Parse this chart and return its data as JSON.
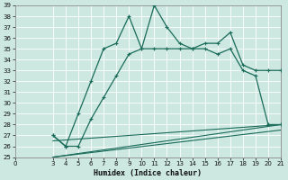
{
  "xlabel": "Humidex (Indice chaleur)",
  "xlim": [
    0,
    21
  ],
  "ylim": [
    25,
    39
  ],
  "yticks": [
    25,
    26,
    27,
    28,
    29,
    30,
    31,
    32,
    33,
    34,
    35,
    36,
    37,
    38,
    39
  ],
  "xticks": [
    0,
    3,
    4,
    5,
    6,
    7,
    8,
    9,
    10,
    11,
    12,
    13,
    14,
    15,
    16,
    17,
    18,
    19,
    20,
    21
  ],
  "bg_color": "#cce8e0",
  "line_color": "#1a6b5a",
  "line1_x": [
    3,
    4,
    5,
    6,
    7,
    8,
    9,
    10,
    11,
    12,
    13,
    14,
    15,
    16,
    17,
    18,
    19,
    20,
    21
  ],
  "line1_y": [
    27.0,
    26.0,
    29.0,
    32.0,
    35.0,
    35.5,
    38.0,
    35.0,
    39.0,
    37.0,
    35.5,
    35.0,
    35.5,
    35.5,
    36.5,
    33.5,
    33.0,
    33.0,
    33.0
  ],
  "line2_x": [
    3,
    4,
    5,
    6,
    7,
    8,
    9,
    10,
    11,
    12,
    13,
    14,
    15,
    16,
    17,
    18,
    19,
    20,
    21
  ],
  "line2_y": [
    27.0,
    26.0,
    26.0,
    28.5,
    30.5,
    32.5,
    34.5,
    35.0,
    35.0,
    35.0,
    35.0,
    35.0,
    35.0,
    34.5,
    35.0,
    33.0,
    32.5,
    28.0,
    28.0
  ],
  "line3_x": [
    3,
    21
  ],
  "line3_y": [
    26.5,
    28.0
  ],
  "line4_x": [
    3,
    21
  ],
  "line4_y": [
    25.0,
    28.0
  ],
  "line5_x": [
    3,
    21
  ],
  "line5_y": [
    25.0,
    27.5
  ]
}
